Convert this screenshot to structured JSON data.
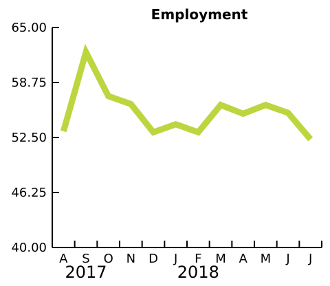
{
  "chart_data": {
    "type": "line",
    "title": "Employment",
    "xlabel": "",
    "ylabel": "",
    "categories": [
      "A",
      "S",
      "O",
      "N",
      "D",
      "J",
      "F",
      "M",
      "A",
      "M",
      "J",
      "J"
    ],
    "year_labels": [
      {
        "text": "2017",
        "category_index": 1
      },
      {
        "text": "2018",
        "category_index": 6
      }
    ],
    "yticks": [
      "40.00",
      "46.25",
      "52.50",
      "58.75",
      "65.00"
    ],
    "ylim": [
      40,
      65
    ],
    "series": [
      {
        "values": [
          53.2,
          62.2,
          57.2,
          56.3,
          53.1,
          54.0,
          53.1,
          56.2,
          55.2,
          56.2,
          55.3,
          52.3
        ],
        "color": "#bcd63f"
      }
    ],
    "grid": false,
    "legend": "none"
  }
}
